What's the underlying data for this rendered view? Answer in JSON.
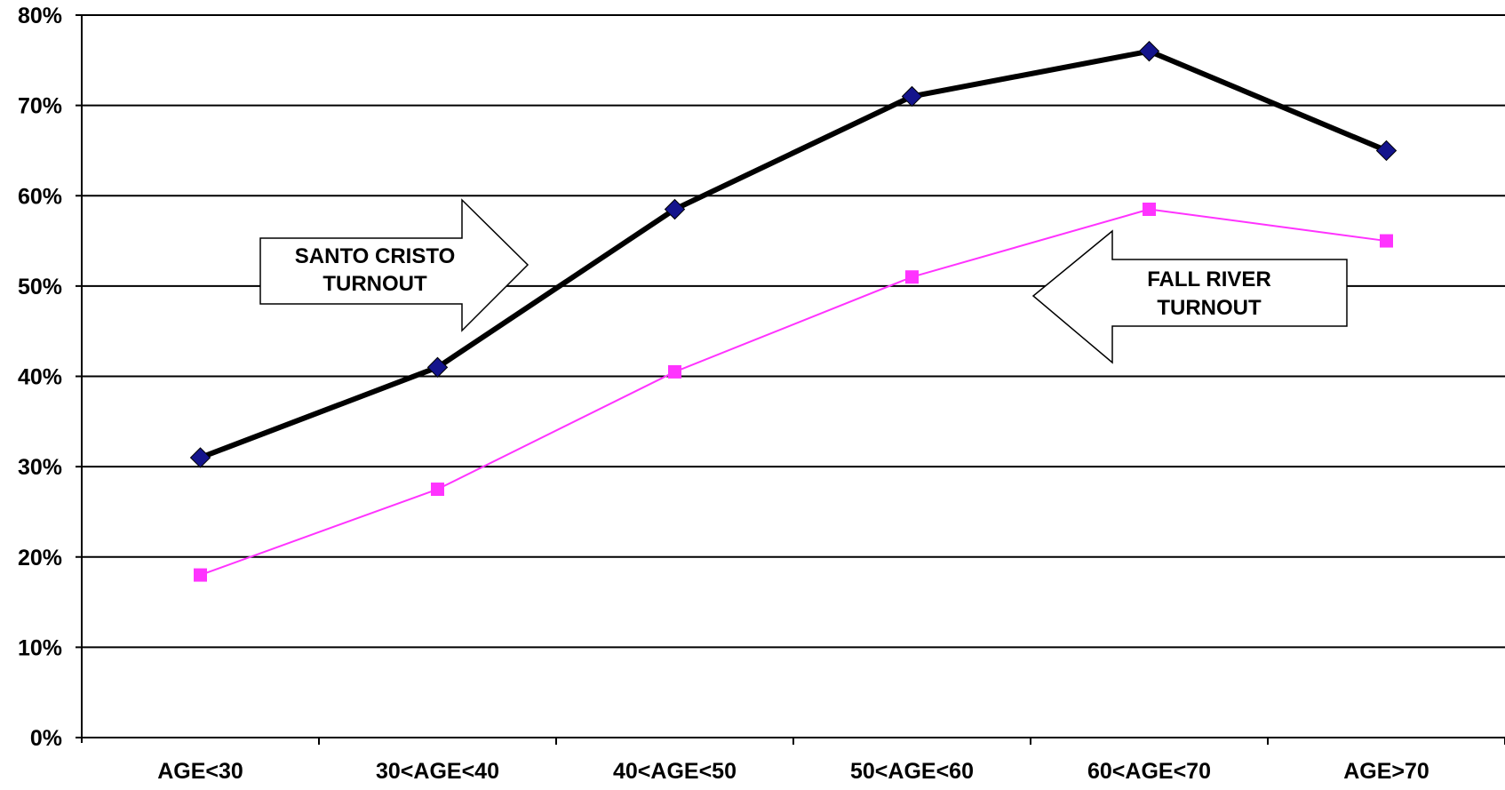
{
  "chart_data": {
    "type": "line",
    "title": "",
    "xlabel": "",
    "ylabel": "",
    "categories": [
      "AGE<30",
      "30<AGE<40",
      "40<AGE<50",
      "50<AGE<60",
      "60<AGE<70",
      "AGE>70"
    ],
    "ylim": [
      0,
      80
    ],
    "yticks": [
      0,
      10,
      20,
      30,
      40,
      50,
      60,
      70,
      80
    ],
    "ytick_labels": [
      "0%",
      "10%",
      "20%",
      "30%",
      "40%",
      "50%",
      "60%",
      "70%",
      "80%"
    ],
    "grid": "horizontal",
    "legend": "none",
    "series": [
      {
        "values": [
          31,
          41,
          58.5,
          71,
          76,
          65
        ],
        "color": "#000000",
        "marker": "diamond",
        "marker_color": "#14148c"
      },
      {
        "values": [
          18,
          27.5,
          40.5,
          51,
          58.5,
          55
        ],
        "color": "#ff33ff",
        "marker": "square",
        "marker_color": "#ff33ff"
      }
    ],
    "annotations": [
      {
        "lines": [
          "SANTO CRISTO",
          "TURNOUT"
        ],
        "shape": "right-arrow"
      },
      {
        "lines": [
          "FALL RIVER",
          "TURNOUT"
        ],
        "shape": "left-arrow"
      }
    ]
  }
}
